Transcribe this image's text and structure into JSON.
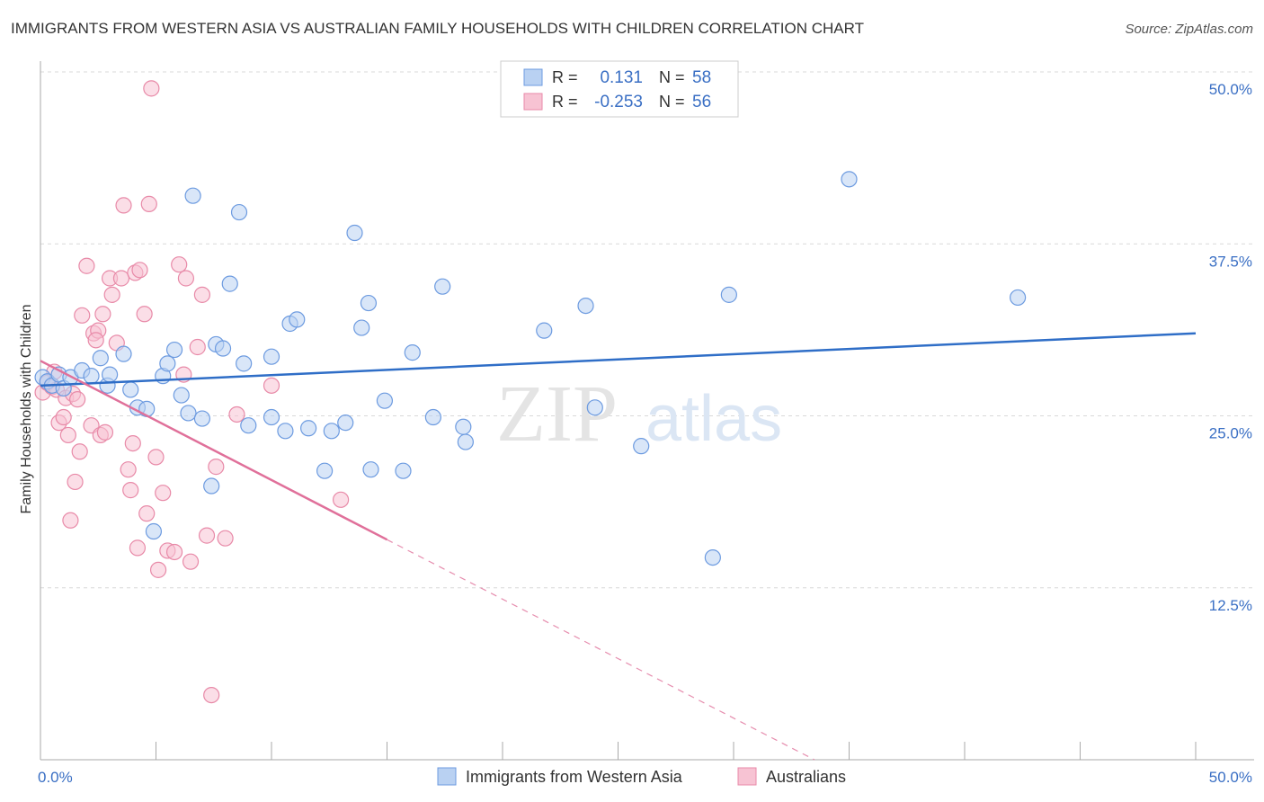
{
  "title": "IMMIGRANTS FROM WESTERN ASIA VS AUSTRALIAN FAMILY HOUSEHOLDS WITH CHILDREN CORRELATION CHART",
  "source": "Source: ZipAtlas.com",
  "watermark": {
    "zip": "ZIP",
    "atlas": "atlas"
  },
  "colors": {
    "blue_fill": "#b9d1f2",
    "blue_stroke": "#6d9be0",
    "blue_line": "#2f6ec7",
    "pink_fill": "#f7c3d3",
    "pink_stroke": "#e88aa8",
    "pink_line": "#e0709a",
    "grid": "#d8d8d8",
    "axis": "#aaaaaa"
  },
  "legend": {
    "rows": [
      {
        "r_label": "R =",
        "r_value": "0.131",
        "n_label": "N =",
        "n_value": "58",
        "series": "blue"
      },
      {
        "r_label": "R =",
        "r_value": "-0.253",
        "n_label": "N =",
        "n_value": "56",
        "series": "pink"
      }
    ]
  },
  "chart_data": {
    "type": "scatter",
    "title": "IMMIGRANTS FROM WESTERN ASIA VS AUSTRALIAN FAMILY HOUSEHOLDS WITH CHILDREN CORRELATION CHART",
    "xlabel": "",
    "ylabel": "Family Households with Children",
    "xlim": [
      0,
      50
    ],
    "ylim": [
      0,
      50
    ],
    "x_tick_labels": [
      "0.0%",
      "50.0%"
    ],
    "y_ticks": [
      12.5,
      25.0,
      37.5,
      50.0
    ],
    "y_tick_labels": [
      "12.5%",
      "25.0%",
      "37.5%",
      "50.0%"
    ],
    "legend_position": "bottom",
    "series": [
      {
        "name": "Immigrants from Western Asia",
        "color": "blue",
        "trend": {
          "x0": 0,
          "y0": 27.2,
          "x1": 50,
          "y1": 31.0,
          "dashed_from": null
        },
        "points": [
          [
            0.1,
            27.8
          ],
          [
            0.3,
            27.5
          ],
          [
            0.5,
            27.2
          ],
          [
            0.8,
            28.0
          ],
          [
            1.0,
            27.0
          ],
          [
            1.3,
            27.8
          ],
          [
            1.8,
            28.3
          ],
          [
            2.2,
            27.9
          ],
          [
            2.6,
            29.2
          ],
          [
            2.9,
            27.2
          ],
          [
            3.0,
            28.0
          ],
          [
            3.6,
            29.5
          ],
          [
            3.9,
            26.9
          ],
          [
            4.2,
            25.6
          ],
          [
            4.6,
            25.5
          ],
          [
            4.9,
            16.6
          ],
          [
            5.3,
            27.9
          ],
          [
            5.5,
            28.8
          ],
          [
            5.8,
            29.8
          ],
          [
            6.1,
            26.5
          ],
          [
            6.4,
            25.2
          ],
          [
            6.6,
            41.0
          ],
          [
            7.0,
            24.8
          ],
          [
            7.4,
            19.9
          ],
          [
            7.6,
            30.2
          ],
          [
            7.9,
            29.9
          ],
          [
            8.2,
            34.6
          ],
          [
            8.6,
            39.8
          ],
          [
            8.8,
            28.8
          ],
          [
            9.0,
            24.3
          ],
          [
            10.0,
            29.3
          ],
          [
            10.0,
            24.9
          ],
          [
            10.6,
            23.9
          ],
          [
            10.8,
            31.7
          ],
          [
            11.1,
            32.0
          ],
          [
            11.6,
            24.1
          ],
          [
            12.3,
            21.0
          ],
          [
            12.6,
            23.9
          ],
          [
            13.2,
            24.5
          ],
          [
            13.6,
            38.3
          ],
          [
            13.9,
            31.4
          ],
          [
            14.2,
            33.2
          ],
          [
            14.3,
            21.1
          ],
          [
            14.9,
            26.1
          ],
          [
            15.7,
            21.0
          ],
          [
            16.1,
            29.6
          ],
          [
            17.0,
            24.9
          ],
          [
            17.4,
            34.4
          ],
          [
            18.3,
            24.2
          ],
          [
            18.4,
            23.1
          ],
          [
            21.8,
            31.2
          ],
          [
            23.6,
            33.0
          ],
          [
            24.0,
            25.6
          ],
          [
            26.0,
            22.8
          ],
          [
            29.1,
            14.7
          ],
          [
            29.8,
            33.8
          ],
          [
            35.0,
            42.2
          ],
          [
            42.3,
            33.6
          ]
        ]
      },
      {
        "name": "Australians",
        "color": "pink",
        "trend": {
          "x0": 0,
          "y0": 29.0,
          "x1": 15.0,
          "y1": 16.0,
          "dashed_from": 15.0,
          "dashed_x1": 33.5,
          "dashed_y1": 0.0
        },
        "points": [
          [
            0.1,
            26.7
          ],
          [
            0.3,
            27.4
          ],
          [
            0.5,
            27.1
          ],
          [
            0.6,
            28.2
          ],
          [
            0.7,
            26.9
          ],
          [
            0.8,
            24.5
          ],
          [
            1.0,
            24.9
          ],
          [
            1.1,
            26.3
          ],
          [
            1.2,
            23.6
          ],
          [
            1.3,
            17.4
          ],
          [
            1.4,
            26.6
          ],
          [
            1.5,
            20.2
          ],
          [
            1.6,
            26.2
          ],
          [
            1.7,
            22.4
          ],
          [
            1.8,
            32.3
          ],
          [
            2.0,
            35.9
          ],
          [
            2.2,
            24.3
          ],
          [
            2.3,
            31.0
          ],
          [
            2.5,
            31.2
          ],
          [
            2.6,
            23.6
          ],
          [
            2.7,
            32.4
          ],
          [
            2.8,
            23.8
          ],
          [
            3.0,
            35.0
          ],
          [
            3.1,
            33.8
          ],
          [
            3.3,
            30.3
          ],
          [
            3.5,
            35.0
          ],
          [
            3.6,
            40.3
          ],
          [
            3.8,
            21.1
          ],
          [
            3.9,
            19.6
          ],
          [
            4.0,
            23.0
          ],
          [
            4.1,
            35.4
          ],
          [
            4.2,
            15.4
          ],
          [
            4.3,
            35.6
          ],
          [
            4.5,
            32.4
          ],
          [
            4.6,
            17.9
          ],
          [
            4.7,
            40.4
          ],
          [
            4.8,
            48.8
          ],
          [
            5.0,
            22.0
          ],
          [
            5.1,
            13.8
          ],
          [
            5.3,
            19.4
          ],
          [
            5.5,
            15.2
          ],
          [
            5.8,
            15.1
          ],
          [
            6.0,
            36.0
          ],
          [
            6.2,
            28.0
          ],
          [
            6.3,
            35.0
          ],
          [
            6.5,
            14.4
          ],
          [
            6.8,
            30.0
          ],
          [
            7.0,
            33.8
          ],
          [
            7.2,
            16.3
          ],
          [
            7.4,
            4.7
          ],
          [
            7.6,
            21.3
          ],
          [
            8.0,
            16.1
          ],
          [
            8.5,
            25.1
          ],
          [
            10.0,
            27.2
          ],
          [
            13.0,
            18.9
          ],
          [
            2.4,
            30.5
          ]
        ]
      }
    ]
  },
  "bottom_legend": {
    "items": [
      {
        "label": "Immigrants from Western Asia",
        "series": "blue"
      },
      {
        "label": "Australians",
        "series": "pink"
      }
    ]
  }
}
